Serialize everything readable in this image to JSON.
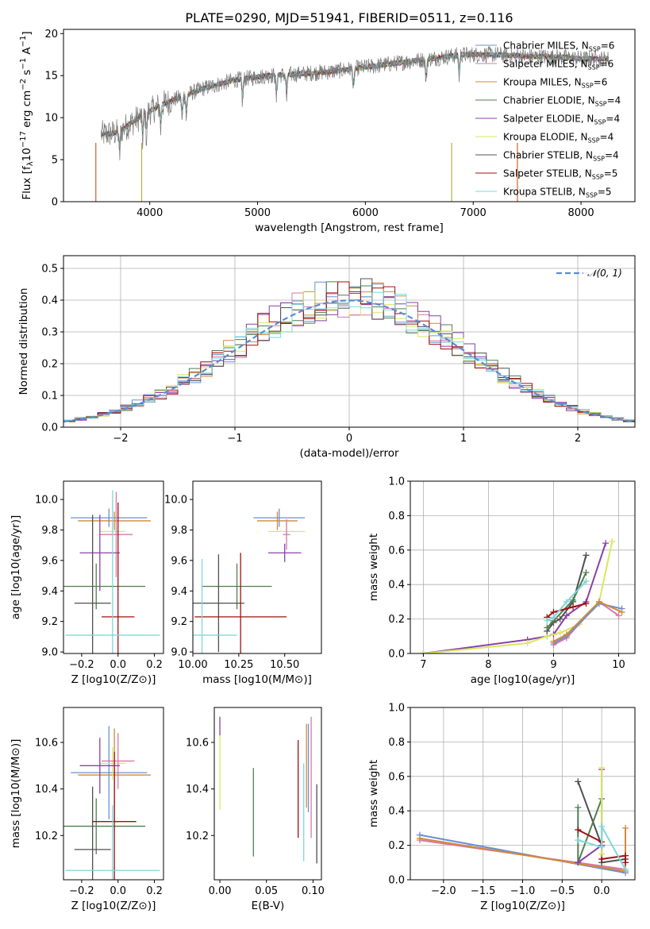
{
  "chart_data": [
    {
      "type": "line",
      "panel": "spectrum",
      "title": "PLATE=0290, MJD=51941, FIBERID=0511, z=0.116",
      "xlabel": "wavelength [Angstrom, rest frame]",
      "ylabel": "Flux [f_λ10^-17 erg cm^-2 s^-1 A^-1]",
      "xlim": [
        3200,
        8500
      ],
      "ylim": [
        0,
        20.5
      ],
      "xticks": [
        4000,
        5000,
        6000,
        7000,
        8000
      ],
      "yticks": [
        0,
        5,
        10,
        15,
        20
      ],
      "grid": false,
      "legend_position": "right",
      "continuum": {
        "x": [
          3550,
          3700,
          3900,
          4100,
          4300,
          4500,
          4800,
          5100,
          5400,
          5700,
          6000,
          6300,
          6600,
          6900,
          7200,
          7500,
          7800,
          8000,
          8250
        ],
        "y": [
          8.0,
          8.2,
          10.0,
          11.5,
          12.5,
          13.5,
          14.5,
          15.0,
          15.2,
          15.5,
          16.0,
          16.5,
          17.0,
          17.5,
          17.5,
          17.3,
          17.2,
          17.0,
          17.0
        ]
      },
      "series": [
        {
          "name": "Chabrier MILES, N_SSP=6",
          "color": "#6a8fd8"
        },
        {
          "name": "Salpeter MILES, N_SSP=6",
          "color": "#d978a6"
        },
        {
          "name": "Kroupa MILES, N_SSP=6",
          "color": "#d08a3a"
        },
        {
          "name": "Chabrier ELODIE, N_SSP=4",
          "color": "#4f7f4f"
        },
        {
          "name": "Salpeter ELODIE, N_SSP=4",
          "color": "#8b3fa8"
        },
        {
          "name": "Kroupa ELODIE, N_SSP=4",
          "color": "#d8e860"
        },
        {
          "name": "Chabrier STELIB, N_SSP=4",
          "color": "#505050"
        },
        {
          "name": "Salpeter STELIB, N_SSP=5",
          "color": "#a01010"
        },
        {
          "name": "Kroupa STELIB, N_SSP=5",
          "color": "#7fd6dc"
        }
      ]
    },
    {
      "type": "line",
      "panel": "residuals",
      "xlabel": "(data-model)/error",
      "ylabel": "Normed distribution",
      "xlim": [
        -2.5,
        2.5
      ],
      "ylim": [
        0,
        0.54
      ],
      "xticks": [
        -2,
        -1,
        0,
        1,
        2
      ],
      "xtick_labels": [
        "−2",
        "−1",
        "0",
        "1",
        "2"
      ],
      "yticks": [
        0.0,
        0.1,
        0.2,
        0.3,
        0.4,
        0.5
      ],
      "ytick_labels": [
        "0.0",
        "0.1",
        "0.2",
        "0.3",
        "0.4",
        "0.5"
      ],
      "grid": true,
      "legend": "𝒩(0, 1)",
      "legend_position": "top-right",
      "gaussian_color": "#5b8bd6"
    },
    {
      "type": "scatter",
      "panel": "age-vs-Z",
      "xlabel": "Z [log10(Z/Z⊙)]",
      "ylabel": "age [log10(age/yr)]",
      "xlim": [
        -0.3,
        0.25
      ],
      "ylim": [
        8.99,
        10.12
      ],
      "xticks": [
        -0.2,
        0.0,
        0.2
      ],
      "xtick_labels": [
        "−0.2",
        "0.0",
        "0.2"
      ],
      "yticks": [
        9.0,
        9.2,
        9.4,
        9.6,
        9.8,
        10.0
      ],
      "ytick_labels": [
        "9.0",
        "9.2",
        "9.4",
        "9.6",
        "9.8",
        "10.0"
      ],
      "points": [
        {
          "x": -0.05,
          "xerr": 0.21,
          "y": 9.88,
          "yerr": 0.06,
          "color": "#6a8fd8"
        },
        {
          "x": -0.02,
          "xerr": 0.2,
          "y": 9.86,
          "yerr": 0.06,
          "color": "#d08a3a"
        },
        {
          "x": -0.03,
          "xerr": 0.07,
          "y": 9.79,
          "yerr": 0.06,
          "color": "#d8e860"
        },
        {
          "x": -0.01,
          "xerr": 0.09,
          "y": 9.77,
          "yerr": 0.28,
          "color": "#d978a6"
        },
        {
          "x": -0.1,
          "xerr": 0.11,
          "y": 9.65,
          "yerr": 0.25,
          "color": "#8b3fa8"
        },
        {
          "x": -0.12,
          "xerr": 0.27,
          "y": 9.43,
          "yerr": 0.15,
          "color": "#4f7f4f"
        },
        {
          "x": -0.14,
          "xerr": 0.1,
          "y": 9.32,
          "yerr": 0.58,
          "color": "#505050"
        },
        {
          "x": 0.0,
          "xerr": 0.09,
          "y": 9.23,
          "yerr": 0.75,
          "color": "#a01010"
        },
        {
          "x": -0.03,
          "xerr": 0.26,
          "y": 9.11,
          "yerr": 0.95,
          "color": "#7fd6dc"
        }
      ]
    },
    {
      "type": "scatter",
      "panel": "age-vs-mass",
      "xlabel": "mass [log10(M/M⊙)]",
      "xlim": [
        10.0,
        10.7
      ],
      "ylim": [
        8.99,
        10.12
      ],
      "xticks": [
        10.0,
        10.25,
        10.5
      ],
      "xtick_labels": [
        "10.00",
        "10.25",
        "10.50"
      ],
      "yticks": [
        9.0,
        9.2,
        9.4,
        9.6,
        9.8,
        10.0
      ],
      "ytick_labels": [
        "9.0",
        "9.2",
        "9.4",
        "9.6",
        "9.8",
        "10.0"
      ],
      "points": [
        {
          "x": 10.47,
          "xerr": 0.14,
          "y": 9.88,
          "yerr": 0.06,
          "color": "#6a8fd8"
        },
        {
          "x": 10.46,
          "xerr": 0.11,
          "y": 9.86,
          "yerr": 0.06,
          "color": "#d08a3a"
        },
        {
          "x": 10.51,
          "xerr": 0.1,
          "y": 9.79,
          "yerr": 0.06,
          "color": "#d8e860"
        },
        {
          "x": 10.51,
          "xerr": 0.02,
          "y": 9.77,
          "yerr": 0.1,
          "color": "#d978a6"
        },
        {
          "x": 10.5,
          "xerr": 0.09,
          "y": 9.65,
          "yerr": 0.06,
          "color": "#8b3fa8"
        },
        {
          "x": 10.24,
          "xerr": 0.19,
          "y": 9.43,
          "yerr": 0.15,
          "color": "#4f7f4f"
        },
        {
          "x": 10.14,
          "xerr": 0.14,
          "y": 9.32,
          "yerr": 0.32,
          "color": "#505050"
        },
        {
          "x": 10.26,
          "xerr": 0.25,
          "y": 9.23,
          "yerr": 0.42,
          "color": "#a01010"
        },
        {
          "x": 10.05,
          "xerr": 0.19,
          "y": 9.11,
          "yerr": 0.5,
          "color": "#7fd6dc"
        }
      ]
    },
    {
      "type": "line",
      "panel": "massweight-vs-age",
      "xlabel": "age [log10(age/yr)]",
      "ylabel": "mass weight",
      "xlim": [
        6.8,
        10.25
      ],
      "ylim": [
        0,
        1.0
      ],
      "xticks": [
        7,
        8,
        9,
        10
      ],
      "yticks": [
        0.0,
        0.2,
        0.4,
        0.6,
        0.8,
        1.0
      ],
      "ytick_labels": [
        "0.0",
        "0.2",
        "0.4",
        "0.6",
        "0.8",
        "1.0"
      ],
      "grid": true,
      "series": [
        {
          "color": "#8b3fa8",
          "x": [
            7.0,
            8.6,
            8.9,
            9.0,
            9.2,
            9.5,
            9.8
          ],
          "y": [
            0.0,
            0.08,
            0.1,
            0.11,
            0.22,
            0.3,
            0.64
          ]
        },
        {
          "color": "#d8e860",
          "x": [
            7.0,
            8.6,
            8.9,
            9.1,
            9.4,
            9.7,
            9.9
          ],
          "y": [
            0.0,
            0.06,
            0.1,
            0.12,
            0.17,
            0.3,
            0.65
          ]
        },
        {
          "color": "#505050",
          "x": [
            8.9,
            9.0,
            9.1,
            9.3,
            9.5
          ],
          "y": [
            0.13,
            0.18,
            0.2,
            0.3,
            0.57
          ]
        },
        {
          "color": "#4f7f4f",
          "x": [
            8.9,
            9.0,
            9.3,
            9.5
          ],
          "y": [
            0.15,
            0.19,
            0.31,
            0.47
          ]
        },
        {
          "color": "#a01010",
          "x": [
            8.9,
            9.0,
            9.3,
            9.5
          ],
          "y": [
            0.21,
            0.24,
            0.27,
            0.29
          ]
        },
        {
          "color": "#7fd6dc",
          "x": [
            8.9,
            9.0,
            9.2,
            9.5
          ],
          "y": [
            0.19,
            0.21,
            0.3,
            0.42
          ]
        },
        {
          "color": "#d978a6",
          "x": [
            9.0,
            9.2,
            9.7,
            10.0
          ],
          "y": [
            0.05,
            0.09,
            0.3,
            0.22
          ]
        },
        {
          "color": "#6a8fd8",
          "x": [
            9.0,
            9.2,
            9.7,
            10.05
          ],
          "y": [
            0.06,
            0.1,
            0.29,
            0.26
          ]
        },
        {
          "color": "#d08a3a",
          "x": [
            9.0,
            9.2,
            9.7,
            10.05
          ],
          "y": [
            0.07,
            0.11,
            0.3,
            0.24
          ]
        }
      ]
    },
    {
      "type": "scatter",
      "panel": "mass-vs-Z",
      "xlabel": "Z [log10(Z/Z⊙)]",
      "ylabel": "mass [log10(M/M⊙)]",
      "xlim": [
        -0.3,
        0.25
      ],
      "ylim": [
        10.01,
        10.75
      ],
      "xticks": [
        -0.2,
        0.0,
        0.2
      ],
      "xtick_labels": [
        "−0.2",
        "0.0",
        "0.2"
      ],
      "yticks": [
        10.2,
        10.4,
        10.6
      ],
      "ytick_labels": [
        "10.2",
        "10.4",
        "10.6"
      ],
      "points": [
        {
          "x": -0.05,
          "xerr": 0.21,
          "y": 10.47,
          "yerr": 0.2,
          "color": "#6a8fd8"
        },
        {
          "x": -0.02,
          "xerr": 0.2,
          "y": 10.46,
          "yerr": 0.2,
          "color": "#d08a3a"
        },
        {
          "x": -0.03,
          "xerr": 0.07,
          "y": 10.51,
          "yerr": 0.07,
          "color": "#d8e860"
        },
        {
          "x": 0.0,
          "xerr": 0.09,
          "y": 10.52,
          "yerr": 0.12,
          "color": "#d978a6"
        },
        {
          "x": -0.1,
          "xerr": 0.11,
          "y": 10.5,
          "yerr": 0.12,
          "color": "#8b3fa8"
        },
        {
          "x": -0.12,
          "xerr": 0.27,
          "y": 10.24,
          "yerr": 0.12,
          "color": "#4f7f4f"
        },
        {
          "x": -0.14,
          "xerr": 0.1,
          "y": 10.14,
          "yerr": 0.27,
          "color": "#505050"
        },
        {
          "x": -0.02,
          "xerr": 0.12,
          "y": 10.26,
          "yerr": 0.3,
          "color": "#a01010"
        },
        {
          "x": -0.03,
          "xerr": 0.26,
          "y": 10.05,
          "yerr": 0.28,
          "color": "#7fd6dc"
        }
      ]
    },
    {
      "type": "scatter",
      "panel": "mass-vs-ebv",
      "xlabel": "E(B-V)",
      "xlim": [
        -0.006,
        0.109
      ],
      "ylim": [
        10.01,
        10.75
      ],
      "xticks": [
        0.0,
        0.05,
        0.1
      ],
      "xtick_labels": [
        "0.00",
        "0.05",
        "0.10"
      ],
      "yticks": [
        10.2,
        10.4,
        10.6
      ],
      "ytick_labels": [
        "10.2",
        "10.4",
        "10.6"
      ],
      "points": [
        {
          "x": 0.0,
          "y": 10.67,
          "yerr": 0.04,
          "color": "#8b3fa8"
        },
        {
          "x": 0.0,
          "y": 10.47,
          "yerr": 0.16,
          "color": "#d8e860"
        },
        {
          "x": 0.036,
          "y": 10.3,
          "yerr": 0.19,
          "color": "#4f7f4f"
        },
        {
          "x": 0.084,
          "y": 10.4,
          "yerr": 0.21,
          "color": "#a01010"
        },
        {
          "x": 0.09,
          "y": 10.3,
          "yerr": 0.21,
          "color": "#7fd6dc"
        },
        {
          "x": 0.093,
          "y": 10.5,
          "yerr": 0.18,
          "color": "#d08a3a"
        },
        {
          "x": 0.095,
          "y": 10.49,
          "yerr": 0.19,
          "color": "#6a8fd8"
        },
        {
          "x": 0.098,
          "y": 10.45,
          "yerr": 0.26,
          "color": "#d978a6"
        },
        {
          "x": 0.104,
          "y": 10.25,
          "yerr": 0.17,
          "color": "#505050"
        }
      ]
    },
    {
      "type": "line",
      "panel": "massweight-vs-Z",
      "xlabel": "Z [log10(Z/Z⊙)]",
      "ylabel": "mass weight",
      "xlim": [
        -2.42,
        0.42
      ],
      "ylim": [
        0,
        1.0
      ],
      "xticks": [
        -2.0,
        -1.5,
        -1.0,
        -0.5,
        0.0
      ],
      "xtick_labels": [
        "−2.0",
        "−1.5",
        "−1.0",
        "−0.5",
        "0.0"
      ],
      "yticks": [
        0.0,
        0.2,
        0.4,
        0.6,
        0.8,
        1.0
      ],
      "ytick_labels": [
        "0.0",
        "0.2",
        "0.4",
        "0.6",
        "0.8",
        "1.0"
      ],
      "grid": true,
      "series": [
        {
          "color": "#6a8fd8",
          "x": [
            -2.3,
            0.3
          ],
          "y": [
            0.26,
            0.04
          ]
        },
        {
          "color": "#d978a6",
          "x": [
            -2.3,
            0.3
          ],
          "y": [
            0.23,
            0.06
          ]
        },
        {
          "color": "#d08a3a",
          "x": [
            -2.3,
            0.3,
            0.3
          ],
          "y": [
            0.24,
            0.05,
            0.3
          ]
        },
        {
          "color": "#505050",
          "x": [
            -0.3,
            0.0,
            0.0,
            0.3
          ],
          "y": [
            0.57,
            0.2,
            0.1,
            0.12
          ]
        },
        {
          "color": "#4f7f4f",
          "x": [
            -0.3,
            -0.3,
            0.0,
            0.0
          ],
          "y": [
            0.42,
            0.1,
            0.47,
            0.2
          ]
        },
        {
          "color": "#a01010",
          "x": [
            -0.3,
            0.0,
            0.0,
            0.3,
            0.3
          ],
          "y": [
            0.29,
            0.22,
            0.12,
            0.14,
            0.1
          ]
        },
        {
          "color": "#8b3fa8",
          "x": [
            -0.3,
            0.0,
            0.0
          ],
          "y": [
            0.1,
            0.2,
            0.64
          ]
        },
        {
          "color": "#d8e860",
          "x": [
            0.0,
            0.0
          ],
          "y": [
            0.15,
            0.65
          ]
        },
        {
          "color": "#7fd6dc",
          "x": [
            -0.3,
            0.0,
            0.0,
            0.3
          ],
          "y": [
            0.23,
            0.19,
            0.31,
            0.06
          ]
        }
      ]
    }
  ]
}
